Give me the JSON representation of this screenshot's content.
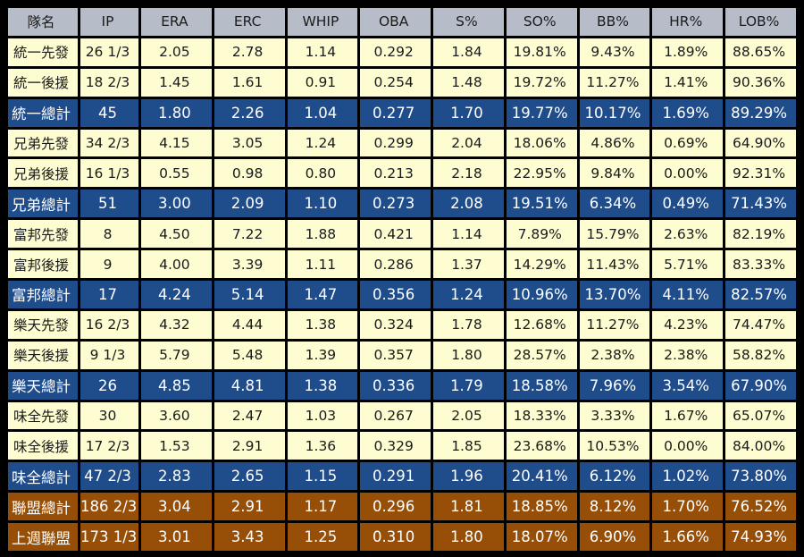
{
  "header": [
    "隊名",
    "IP",
    "ERA",
    "ERC",
    "WHIP",
    "OBA",
    "S%",
    "SO%",
    "BB%",
    "HR%",
    "LOB%"
  ],
  "rows": [
    {
      "cells": [
        "統一先發",
        "26 1/3",
        "2.05",
        "2.78",
        "1.14",
        "0.292",
        "1.84",
        "19.81%",
        "9.43%",
        "1.89%",
        "88.65%"
      ]
    },
    {
      "cells": [
        "統一後援",
        "18 2/3",
        "1.45",
        "1.61",
        "0.91",
        "0.254",
        "1.48",
        "19.72%",
        "11.27%",
        "1.41%",
        "90.36%"
      ]
    },
    {
      "cells": [
        "統一總計",
        "45",
        "1.80",
        "2.26",
        "1.04",
        "0.277",
        "1.70",
        "19.77%",
        "10.17%",
        "1.69%",
        "89.29%"
      ]
    },
    {
      "cells": [
        "兄弟先發",
        "34 2/3",
        "4.15",
        "3.05",
        "1.24",
        "0.299",
        "2.04",
        "18.06%",
        "4.86%",
        "0.69%",
        "64.90%"
      ]
    },
    {
      "cells": [
        "兄弟後援",
        "16 1/3",
        "0.55",
        "0.98",
        "0.80",
        "0.213",
        "2.18",
        "22.95%",
        "9.84%",
        "0.00%",
        "92.31%"
      ]
    },
    {
      "cells": [
        "兄弟總計",
        "51",
        "3.00",
        "2.09",
        "1.10",
        "0.273",
        "2.08",
        "19.51%",
        "6.34%",
        "0.49%",
        "71.43%"
      ]
    },
    {
      "cells": [
        "富邦先發",
        "8",
        "4.50",
        "7.22",
        "1.88",
        "0.421",
        "1.14",
        "7.89%",
        "15.79%",
        "2.63%",
        "82.19%"
      ]
    },
    {
      "cells": [
        "富邦後援",
        "9",
        "4.00",
        "3.39",
        "1.11",
        "0.286",
        "1.37",
        "14.29%",
        "11.43%",
        "5.71%",
        "83.33%"
      ]
    },
    {
      "cells": [
        "富邦總計",
        "17",
        "4.24",
        "5.14",
        "1.47",
        "0.356",
        "1.24",
        "10.96%",
        "13.70%",
        "4.11%",
        "82.57%"
      ]
    },
    {
      "cells": [
        "樂天先發",
        "16 2/3",
        "4.32",
        "4.44",
        "1.38",
        "0.324",
        "1.78",
        "12.68%",
        "11.27%",
        "4.23%",
        "74.47%"
      ]
    },
    {
      "cells": [
        "樂天後援",
        "9 1/3",
        "5.79",
        "5.48",
        "1.39",
        "0.357",
        "1.80",
        "28.57%",
        "2.38%",
        "2.38%",
        "58.82%"
      ]
    },
    {
      "cells": [
        "樂天總計",
        "26",
        "4.85",
        "4.81",
        "1.38",
        "0.336",
        "1.79",
        "18.58%",
        "7.96%",
        "3.54%",
        "67.90%"
      ]
    },
    {
      "cells": [
        "味全先發",
        "30",
        "3.60",
        "2.47",
        "1.03",
        "0.267",
        "2.05",
        "18.33%",
        "3.33%",
        "1.67%",
        "65.07%"
      ]
    },
    {
      "cells": [
        "味全後援",
        "17 2/3",
        "1.53",
        "2.91",
        "1.36",
        "0.329",
        "1.85",
        "23.68%",
        "10.53%",
        "0.00%",
        "84.00%"
      ]
    },
    {
      "cells": [
        "味全總計",
        "47 2/3",
        "2.83",
        "2.65",
        "1.15",
        "0.291",
        "1.96",
        "20.41%",
        "6.12%",
        "1.02%",
        "73.80%"
      ]
    },
    {
      "cells": [
        "聯盟總計",
        "186 2/3",
        "3.04",
        "2.91",
        "1.17",
        "0.296",
        "1.81",
        "18.85%",
        "8.12%",
        "1.70%",
        "76.52%"
      ]
    },
    {
      "cells": [
        "上週聯盟",
        "173 1/3",
        "3.01",
        "3.43",
        "1.25",
        "0.310",
        "1.80",
        "18.07%",
        "6.90%",
        "1.66%",
        "74.93%"
      ]
    }
  ],
  "colors": {
    "header_bg": "#b7bdc8",
    "row_bg": "#fefdd2",
    "team_total_bg": "#1f4c8b",
    "league_bg": "#974f08"
  }
}
